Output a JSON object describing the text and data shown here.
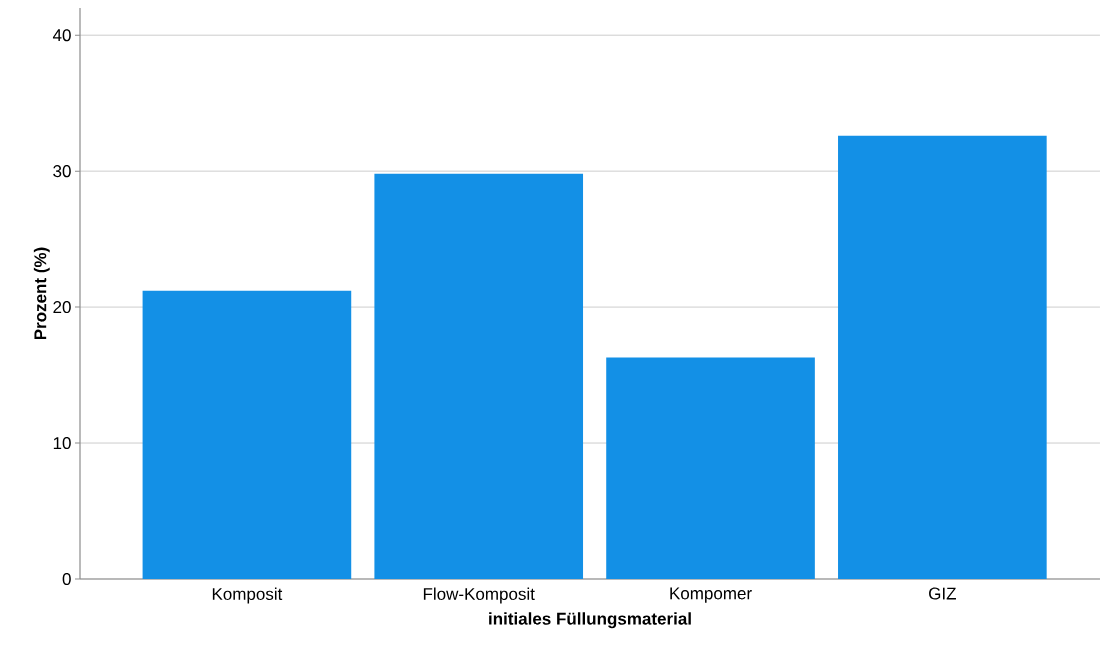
{
  "chart_data": {
    "type": "bar",
    "xlabel": "initiales Füllungsmaterial",
    "ylabel": "Prozent (%)",
    "categories": [
      "Komposit",
      "Flow-Komposit",
      "Kompomer",
      "GIZ"
    ],
    "values": [
      21.2,
      29.8,
      16.3,
      32.6
    ],
    "color": "#1390e6",
    "ylim": [
      0,
      42
    ],
    "yticks": [
      0,
      10,
      20,
      30,
      40
    ],
    "grid": "y"
  }
}
